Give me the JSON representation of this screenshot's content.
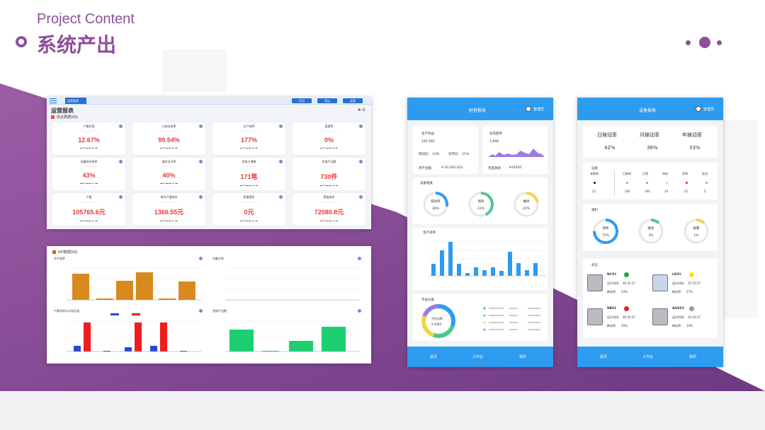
{
  "header": {
    "subtitle": "Project Content",
    "title": "系统产出"
  },
  "colors": {
    "brand": "#8d4f9a",
    "accent_blue": "#2d9bf0",
    "desktop_blue": "#2a6fd6",
    "kpi_red": "#e83b3b",
    "bar_orange": "#d88a1e",
    "bar_red": "#ef1d1d",
    "bar_green": "#1dcf71"
  },
  "desktop_overview": {
    "tab_label": "运营报表",
    "buttons": [
      "打印",
      "导出",
      "全屏"
    ],
    "page_title": "运营报表",
    "section": "综合数据对比",
    "kpis": [
      {
        "name": "产能利用",
        "value": "12.67%"
      },
      {
        "name": "计划达成率",
        "value": "99.54%"
      },
      {
        "name": "生产效率",
        "value": "177%"
      },
      {
        "name": "直通率",
        "value": "0%"
      },
      {
        "name": "设备综合效率",
        "value": "43%"
      },
      {
        "name": "准时交付率",
        "value": "40%"
      },
      {
        "name": "完成工单数",
        "value": "171笔"
      },
      {
        "name": "完成产品数",
        "value": "730件"
      },
      {
        "name": "产值",
        "value": "105765.6元"
      },
      {
        "name": "单位产值成本",
        "value": "1366.55元"
      },
      {
        "name": "质量损失",
        "value": "0元"
      },
      {
        "name": "直接成本",
        "value": "72080.8元"
      }
    ]
  },
  "desktop_kpi": {
    "section": "KPI数据对比",
    "charts": [
      {
        "title": "生产效率"
      },
      {
        "title": "设备不良"
      },
      {
        "title": "产能利用与计划达成"
      },
      {
        "title": "完成产品数"
      }
    ]
  },
  "mobile_ops": {
    "title": "经营报表",
    "user": "管理员",
    "output": {
      "label": "生产效益",
      "value": "126.560",
      "week_ratio": "周同比： 12%",
      "day_ratio": "日环比： 11%",
      "monthly": "月产出额",
      "monthly_value": "¥ 10,200,423"
    },
    "trend": {
      "label": "投资趋势",
      "value": "1,848",
      "monthly": "月度收款",
      "monthly_value": "¥32000"
    },
    "equipment": {
      "label": "设备相关",
      "gauges": [
        {
          "name": "稼动率",
          "value": "28%",
          "percent": 28,
          "color": "#2d9bf0"
        },
        {
          "name": "保养",
          "value": "43%",
          "percent": 43,
          "color": "#4dc98a"
        },
        {
          "name": "维修",
          "value": "22%",
          "percent": 22,
          "color": "#f3d34a"
        }
      ]
    },
    "production": {
      "label": "生产效率"
    },
    "defects": {
      "label": "不良分类",
      "center_label": "不良总数",
      "center_value": "2000"
    }
  },
  "mobile_ops_nav": [
    "首页",
    "工作台",
    "我的"
  ],
  "mobile_equipment": {
    "title": "设备报表",
    "user": "管理员",
    "rates": [
      {
        "name": "日稼动率",
        "value": "42%"
      },
      {
        "name": "月稼动率",
        "value": "36%"
      },
      {
        "name": "年稼动率",
        "value": "33%"
      }
    ],
    "status_label": "设备",
    "status_items": [
      {
        "name": "未联网",
        "count": "25",
        "color": "#111111"
      },
      {
        "name": "已联网",
        "count": "200",
        "color": "#4dc98a"
      },
      {
        "name": "正常",
        "count": "160",
        "color": "#4dc98a"
      },
      {
        "name": "待机",
        "count": "10",
        "color": "#f3d34a"
      },
      {
        "name": "异常",
        "count": "25",
        "color": "#ef1d1d"
      },
      {
        "name": "关机",
        "count": "5",
        "color": "#aaaaaa"
      }
    ],
    "maint_label": "维护",
    "maint_gauges": [
      {
        "name": "保养",
        "value": "75%",
        "percent": 75,
        "color": "#2d9bf0"
      },
      {
        "name": "维修",
        "value": "3%",
        "percent": 3,
        "color": "#4dc98a"
      },
      {
        "name": "报警",
        "value": "1%",
        "percent": 1,
        "color": "#f3d34a"
      }
    ],
    "machines_label": "状态",
    "machines": [
      {
        "id": "NC01",
        "run_label": "运行时间:",
        "run": "30:35:27",
        "rate_label": "稼动率:",
        "rate": "24%",
        "color": "#22a83a"
      },
      {
        "id": "LK01",
        "run_label": "运行时间:",
        "run": "25:55:27",
        "rate_label": "稼动率:",
        "rate": "27%",
        "color": "#f7e51d"
      },
      {
        "id": "RB01",
        "run_label": "运行时间:",
        "run": "30:35:27",
        "rate_label": "稼动率:",
        "rate": "20%",
        "color": "#ef1d1d"
      },
      {
        "id": "AGV01",
        "run_label": "运行时间:",
        "run": "10:31:27",
        "rate_label": "稼动率:",
        "rate": "14%",
        "color": "#9a9a9a"
      }
    ]
  },
  "mobile_equipment_nav": [
    "首页",
    "工作台",
    "我的"
  ]
}
